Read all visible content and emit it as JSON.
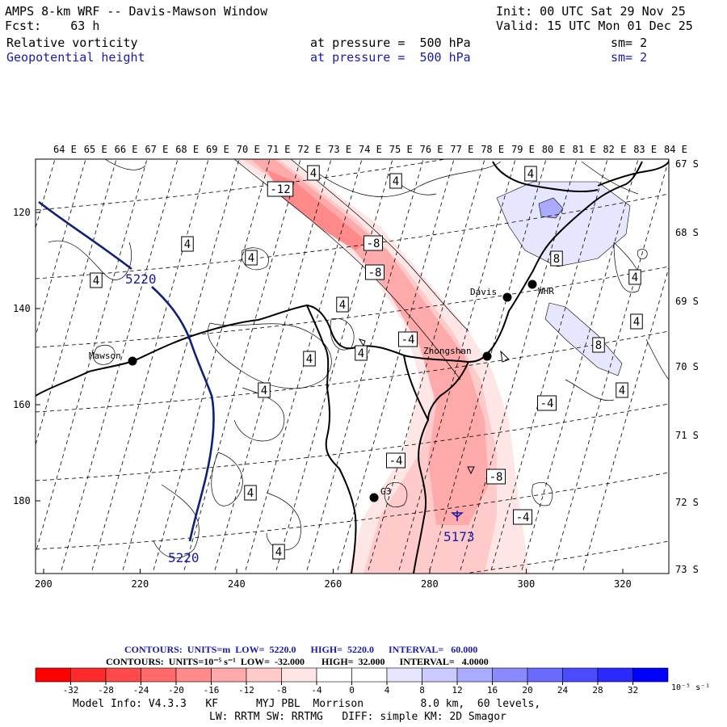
{
  "header": {
    "line1_left": "AMPS 8-km WRF -- Davis-Mawson Window",
    "line1_right": "Init: 00 UTC Sat 29 Nov 25",
    "line2_left": "Fcst:    63 h",
    "line2_right": "Valid: 15 UTC Mon 01 Dec 25",
    "field1": {
      "name": "Relative vorticity",
      "level": "at pressure =  500 hPa",
      "sm": "sm= 2"
    },
    "field2": {
      "name": "Geopotential height",
      "level": "at pressure =  500 hPa",
      "sm": "sm= 2"
    }
  },
  "map": {
    "lon_labels": [
      "64 E",
      "65 E",
      "66 E",
      "67 E",
      "68 E",
      "69 E",
      "70 E",
      "71 E",
      "72 E",
      "73 E",
      "74 E",
      "75 E",
      "76 E",
      "77 E",
      "78 E",
      "79 E",
      "80 E",
      "81 E",
      "82 E",
      "83 E",
      "84 E"
    ],
    "lat_labels": [
      "67 S",
      "68 S",
      "69 S",
      "70 S",
      "71 S",
      "72 S",
      "73 S"
    ],
    "x_ticks": [
      "200",
      "220",
      "240",
      "260",
      "280",
      "300",
      "320"
    ],
    "y_ticks": [
      "120",
      "140",
      "160",
      "180"
    ],
    "stations": [
      {
        "name": "Mawson"
      },
      {
        "name": "Davis"
      },
      {
        "name": "WHR"
      },
      {
        "name": "Zhongshan"
      },
      {
        "name": "G3"
      }
    ],
    "height_labels": [
      "5220",
      "5220",
      "5173"
    ],
    "vorticity_labels": [
      "4",
      "4",
      "4",
      "4",
      "4",
      "4",
      "4",
      "4",
      "4",
      "4",
      "4",
      "4",
      "4",
      "4",
      "4",
      "-12",
      "-8",
      "-8",
      "-4",
      "-4",
      "-4",
      "-8",
      "-4",
      "8",
      "8"
    ]
  },
  "legend": {
    "contours1": "CONTOURS:  UNITS=m  LOW=  5220.0      HIGH=  5220.0      INTERVAL=   60.000",
    "contours2": "CONTOURS:  UNITS=10⁻⁵ s⁻¹  LOW=  -32.000       HIGH=  32.000      INTERVAL=   4.0000",
    "colorbar_labels": [
      "-32",
      "-28",
      "-24",
      "-20",
      "-16",
      "-12",
      "-8",
      "-4",
      "0",
      "4",
      "8",
      "12",
      "16",
      "20",
      "24",
      "28",
      "32"
    ],
    "unit": "10⁻⁵ s⁻¹",
    "colors": [
      "#ff0000",
      "#ff2a2a",
      "#ff4a4a",
      "#ff6a6a",
      "#ff8a8a",
      "#ffaaaa",
      "#ffcaca",
      "#ffe6e6",
      "#ffffff",
      "#ffffff",
      "#e6e6ff",
      "#cacaff",
      "#aaaaff",
      "#8a8aff",
      "#6a6aff",
      "#4a4aff",
      "#2a2aff",
      "#0000ff"
    ]
  },
  "footer": {
    "line1": "Model Info: V4.3.3   KF      MYJ PBL  Morrison         8.0 km,  60 levels,",
    "line2": "LW: RRTM SW: RRTMG   DIFF: simple KM: 2D Smagor"
  }
}
